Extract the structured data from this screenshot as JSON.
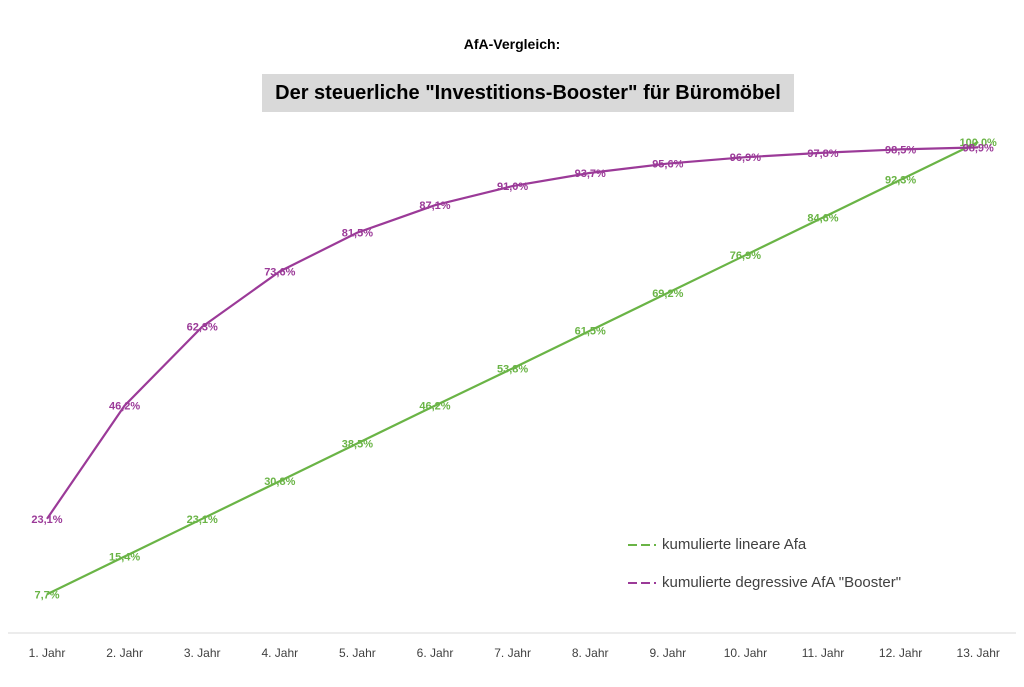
{
  "supertitle": "AfA-Vergleich:",
  "title": "Der steuerliche \"Investitions-Booster\" für Büromöbel",
  "chart_data": {
    "type": "line",
    "categories": [
      "1. Jahr",
      "2. Jahr",
      "3. Jahr",
      "4. Jahr",
      "5. Jahr",
      "6. Jahr",
      "7. Jahr",
      "8. Jahr",
      "9. Jahr",
      "10. Jahr",
      "11. Jahr",
      "12. Jahr",
      "13. Jahr"
    ],
    "ylim": [
      0,
      100
    ],
    "grid": false,
    "legend_position": "bottom-right",
    "series": [
      {
        "name": "kumulierte lineare Afa",
        "color": "#6ab446",
        "values": [
          7.7,
          15.4,
          23.1,
          30.8,
          38.5,
          46.2,
          53.8,
          61.5,
          69.2,
          76.9,
          84.6,
          92.3,
          100.0
        ],
        "labels": [
          "7,7%",
          "15,4%",
          "23,1%",
          "30,8%",
          "38,5%",
          "46,2%",
          "53,8%",
          "61,5%",
          "69,2%",
          "76,9%",
          "84,6%",
          "92,3%",
          "100,0%"
        ]
      },
      {
        "name": "kumulierte degressive AfA \"Booster\"",
        "color": "#9b3a98",
        "values": [
          23.1,
          46.2,
          62.3,
          73.6,
          81.5,
          87.1,
          91.0,
          93.7,
          95.6,
          96.9,
          97.8,
          98.5,
          98.9
        ],
        "labels": [
          "23,1%",
          "46,2%",
          "62,3%",
          "73,6%",
          "81,5%",
          "87,1%",
          "91,0%",
          "93,7%",
          "95,6%",
          "96,9%",
          "97,8%",
          "98,5%",
          "98,9%"
        ]
      }
    ]
  }
}
